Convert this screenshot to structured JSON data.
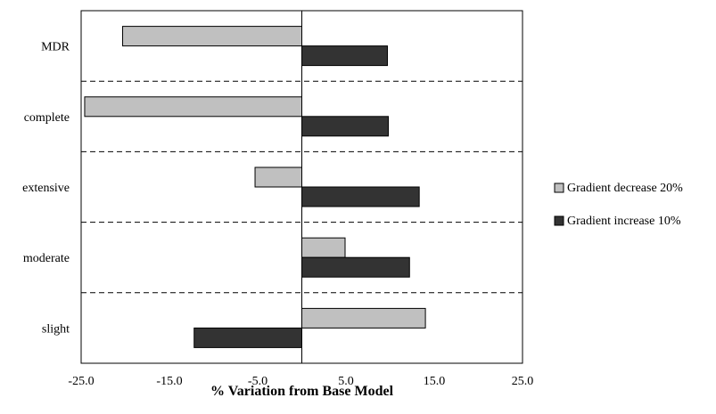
{
  "chart_data": {
    "type": "bar",
    "orientation": "horizontal",
    "title": "",
    "xlabel": "% Variation from Base Model",
    "ylabel": "",
    "categories": [
      "MDR",
      "complete",
      "extensive",
      "moderate",
      "slight"
    ],
    "series": [
      {
        "name": "Gradient decrease 20%",
        "color": "#c0c0c0",
        "values": [
          -20.3,
          -24.6,
          -5.3,
          4.9,
          14.0
        ]
      },
      {
        "name": "Gradient increase 10%",
        "color": "#333333",
        "values": [
          9.7,
          9.8,
          13.3,
          12.2,
          -12.2
        ]
      }
    ],
    "xlim": [
      -25.0,
      25.0
    ],
    "xticks": [
      "-25.0",
      "-15.0",
      "-5.0",
      "5.0",
      "15.0",
      "25.0"
    ],
    "grid": "dashed horizontal separators between categories",
    "legend_position": "right"
  }
}
